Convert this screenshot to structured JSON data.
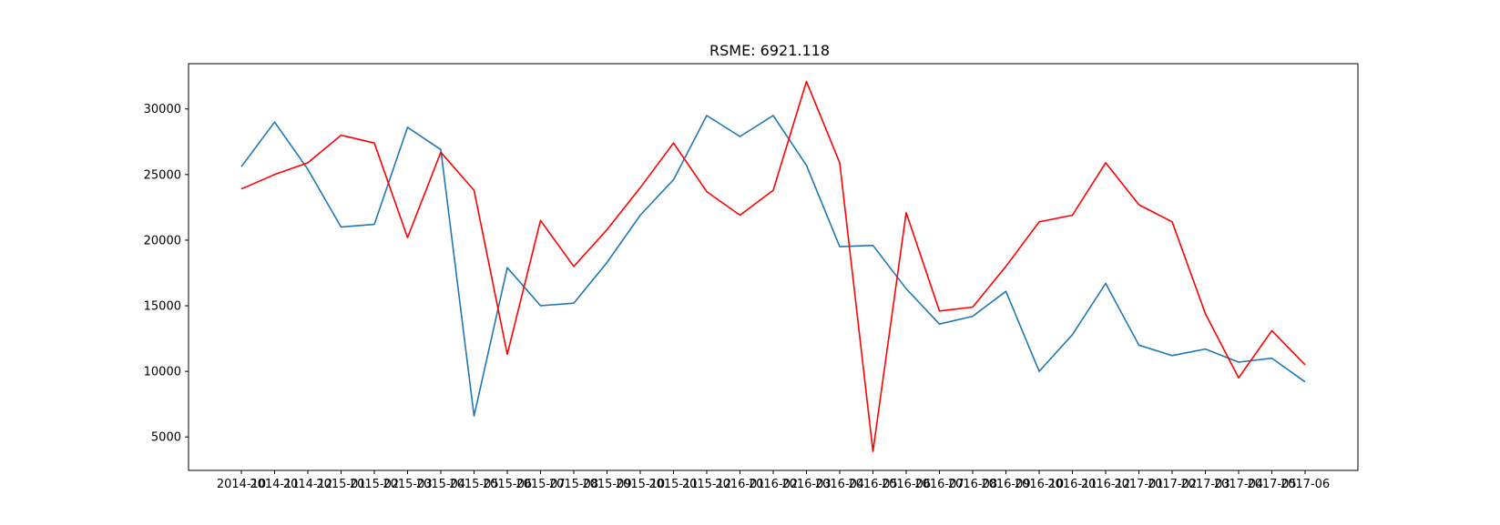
{
  "chart_data": {
    "type": "line",
    "title": "RSME: 6921.118",
    "xlabel": "",
    "ylabel": "",
    "x": [
      "2014-10",
      "2014-11",
      "2014-12",
      "2015-01",
      "2015-02",
      "2015-03",
      "2015-04",
      "2015-05",
      "2015-06",
      "2015-07",
      "2015-08",
      "2015-09",
      "2015-10",
      "2015-11",
      "2015-12",
      "2016-01",
      "2016-02",
      "2016-03",
      "2016-04",
      "2016-05",
      "2016-06",
      "2016-07",
      "2016-08",
      "2016-09",
      "2016-10",
      "2016-11",
      "2016-12",
      "2017-01",
      "2017-02",
      "2017-03",
      "2017-04",
      "2017-05",
      "2017-06"
    ],
    "y_ticks": [
      5000,
      10000,
      15000,
      20000,
      25000,
      30000
    ],
    "ylim": [
      2450,
      33450
    ],
    "grid": false,
    "series": [
      {
        "color": "#1f77b4",
        "values": [
          25600,
          29000,
          25400,
          21000,
          21200,
          28600,
          26900,
          6600,
          17900,
          15000,
          15200,
          18300,
          21900,
          24600,
          29500,
          27900,
          29500,
          25700,
          19500,
          19600,
          16300,
          13600,
          14200,
          16100,
          10000,
          12800,
          16700,
          12000,
          11200,
          11700,
          10700,
          11000,
          9200
        ]
      },
      {
        "color": "#ff0000",
        "values": [
          23900,
          25000,
          25900,
          28000,
          27400,
          20200,
          26700,
          23800,
          11300,
          21500,
          18000,
          20800,
          24000,
          27400,
          23700,
          21900,
          23800,
          32100,
          25900,
          3900,
          22100,
          14600,
          14900,
          18000,
          21400,
          21900,
          25900,
          22700,
          21400,
          14400,
          9500,
          13100,
          10500
        ]
      }
    ]
  }
}
